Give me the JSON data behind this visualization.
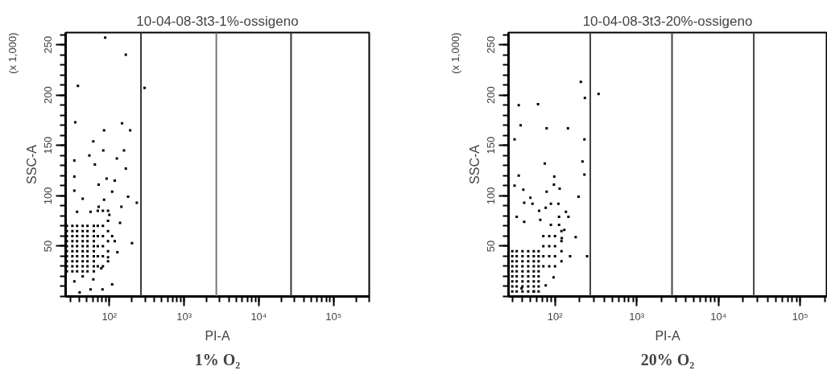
{
  "chart_data": [
    {
      "type": "scatter",
      "title": "10-04-08-3t3-1%-ossigeno",
      "xlabel": "PI-A",
      "ylabel": "SSC-A",
      "annotations": [
        "(x 1,000)",
        "1% O₂"
      ],
      "log": "x",
      "marker": "square",
      "xlim": [
        26,
        300000
      ],
      "ylim": [
        0,
        262
      ],
      "xticks": [
        {
          "value": 100,
          "label": "10²"
        },
        {
          "value": 1000,
          "label": "10³"
        },
        {
          "value": 10000,
          "label": "10⁴"
        },
        {
          "value": 100000,
          "label": "10⁵"
        }
      ],
      "yticks": [
        50,
        100,
        150,
        200,
        250
      ],
      "ref_lines": [
        {
          "axis": "x",
          "value": 265,
          "color": "#333333"
        },
        {
          "axis": "x",
          "value": 2700,
          "color": "#777777"
        },
        {
          "axis": "x",
          "value": 27000,
          "color": "#333333"
        }
      ],
      "series": [
        {
          "color": "#000000",
          "x": [
            88,
            166,
            38,
            296,
            148,
            85,
            190,
            35,
            61,
            54,
            83,
            157,
            126,
            34,
            166,
            64,
            34,
            92,
            118,
            72,
            233,
            201,
            178,
            109,
            145,
            139,
            85,
            44,
            56,
            72,
            100,
            37,
            34,
            109,
            81,
            56,
            40,
            128,
            109,
            118,
            96,
            78,
            61,
            34,
            44,
            27,
            32,
            37,
            44,
            51,
            62,
            27,
            32,
            37,
            44,
            51,
            62,
            27,
            32,
            37,
            44,
            51,
            62,
            27,
            32,
            37,
            44,
            51,
            62,
            27,
            32,
            37,
            44,
            51,
            62,
            27,
            32,
            37,
            44,
            51,
            62,
            27,
            32,
            37,
            44,
            51,
            62,
            27,
            32,
            37,
            44,
            51,
            62,
            27,
            32,
            37,
            44,
            51,
            62,
            27,
            32,
            37,
            44,
            51,
            62,
            70,
            70,
            70,
            70,
            70,
            70,
            82,
            82,
            82,
            82,
            82,
            82,
            96,
            96,
            96,
            96,
            96,
            96
          ],
          "values": [
            257,
            240,
            209,
            207,
            172,
            165,
            165,
            173,
            154,
            140,
            145,
            145,
            137,
            135,
            127,
            131,
            119,
            117,
            115,
            111,
            93,
            53,
            99,
            104,
            89,
            73,
            96,
            97,
            84,
            89,
            81,
            84,
            105,
            12,
            7,
            7,
            4,
            44,
            60,
            55,
            39,
            28,
            17,
            15,
            20,
            25,
            25,
            25,
            25,
            25,
            25,
            30,
            30,
            30,
            30,
            30,
            30,
            35,
            35,
            35,
            35,
            35,
            35,
            40,
            40,
            40,
            40,
            40,
            40,
            45,
            45,
            45,
            45,
            45,
            45,
            50,
            50,
            50,
            50,
            50,
            50,
            55,
            55,
            55,
            55,
            55,
            55,
            60,
            60,
            60,
            60,
            60,
            60,
            65,
            65,
            65,
            65,
            65,
            65,
            70,
            70,
            70,
            70,
            70,
            70,
            30,
            40,
            50,
            60,
            70,
            85,
            30,
            40,
            50,
            60,
            70,
            85,
            35,
            45,
            55,
            65,
            75,
            85
          ]
        }
      ]
    },
    {
      "type": "scatter",
      "title": "10-04-08-3t3-20%-ossigeno",
      "xlabel": "PI-A",
      "ylabel": "SSC-A",
      "annotations": [
        "(x 1,000)",
        "20% O₂"
      ],
      "log": "x",
      "marker": "square",
      "xlim": [
        27,
        210000
      ],
      "ylim": [
        0,
        262
      ],
      "xticks": [
        {
          "value": 100,
          "label": "10²"
        },
        {
          "value": 1000,
          "label": "10³"
        },
        {
          "value": 10000,
          "label": "10⁴"
        },
        {
          "value": 100000,
          "label": "10⁵"
        }
      ],
      "yticks": [
        50,
        100,
        150,
        200,
        250
      ],
      "ref_lines": [
        {
          "axis": "x",
          "value": 270,
          "color": "#444444"
        },
        {
          "axis": "x",
          "value": 2700,
          "color": "#444444"
        },
        {
          "axis": "x",
          "value": 27000,
          "color": "#444444"
        }
      ],
      "series": [
        {
          "color": "#000000",
          "x": [
            207,
            341,
            232,
            36,
            62,
            38,
            79,
            144,
            32,
            229,
            75,
            217,
            229,
            98,
            97,
            36,
            32,
            79,
            114,
            41,
            194,
            50,
            42,
            53,
            89,
            110,
            64,
            77,
            136,
            112,
            146,
            179,
            247,
            153,
            77,
            55,
            39,
            96,
            121,
            130,
            89,
            112,
            66,
            42,
            34,
            30,
            34,
            40,
            47,
            55,
            63,
            30,
            34,
            40,
            47,
            55,
            63,
            30,
            34,
            40,
            47,
            55,
            63,
            30,
            34,
            40,
            47,
            55,
            63,
            30,
            34,
            40,
            47,
            55,
            63,
            30,
            34,
            40,
            47,
            55,
            63,
            30,
            34,
            40,
            47,
            55,
            63,
            30,
            34,
            40,
            47,
            55,
            63,
            30,
            34,
            40,
            47,
            55,
            63,
            72,
            72,
            72,
            72,
            85,
            85,
            85,
            85,
            100,
            100,
            100,
            100,
            120,
            120,
            120,
            120
          ],
          "values": [
            213,
            201,
            197,
            190,
            191,
            170,
            167,
            167,
            156,
            156,
            132,
            134,
            121,
            119,
            111,
            120,
            110,
            104,
            107,
            106,
            99,
            98,
            93,
            92,
            92,
            92,
            85,
            88,
            84,
            79,
            79,
            59,
            40,
            40,
            11,
            5,
            8,
            19,
            58,
            66,
            71,
            71,
            76,
            74,
            79,
            5,
            5,
            5,
            5,
            5,
            5,
            10,
            10,
            10,
            10,
            10,
            10,
            15,
            15,
            15,
            15,
            15,
            15,
            20,
            20,
            20,
            20,
            20,
            20,
            25,
            25,
            25,
            25,
            25,
            25,
            30,
            30,
            30,
            30,
            30,
            30,
            35,
            35,
            35,
            35,
            35,
            35,
            40,
            40,
            40,
            40,
            40,
            40,
            45,
            45,
            45,
            45,
            45,
            45,
            30,
            40,
            50,
            60,
            30,
            40,
            50,
            60,
            30,
            40,
            50,
            60,
            35,
            45,
            55,
            65
          ]
        }
      ]
    }
  ]
}
